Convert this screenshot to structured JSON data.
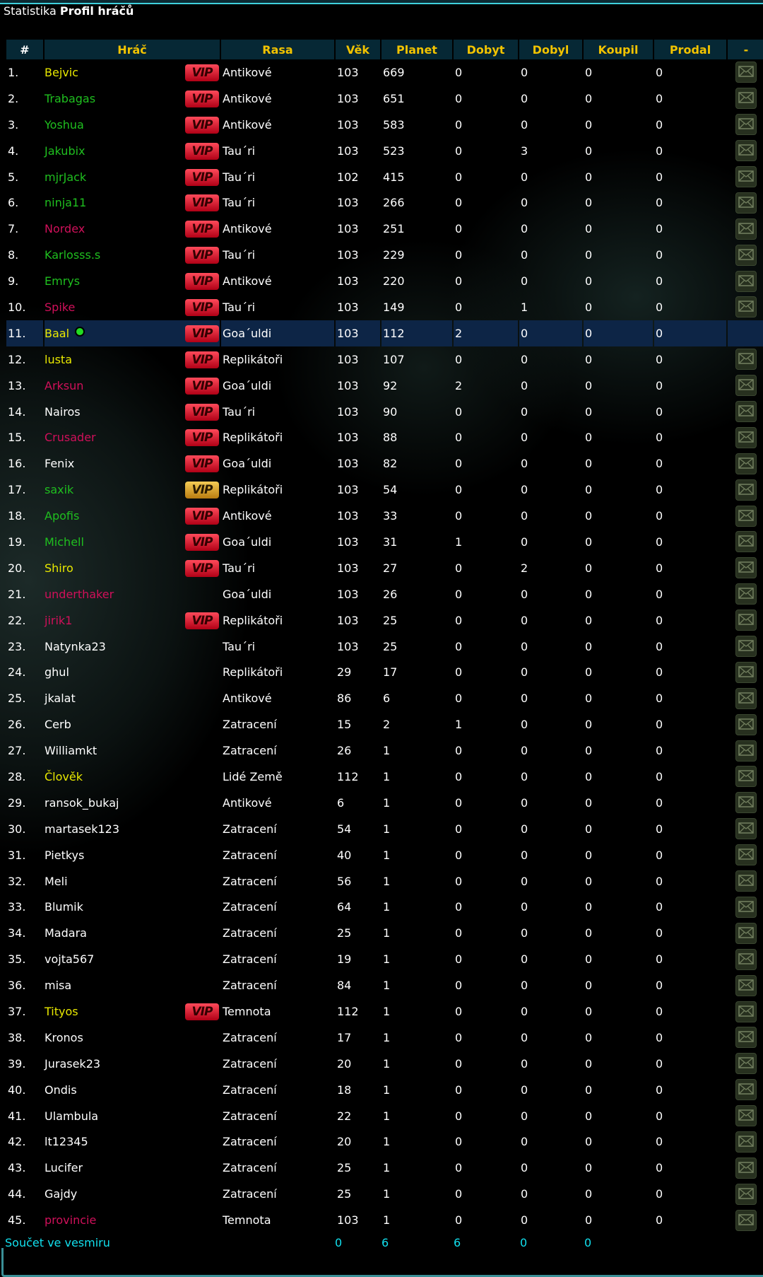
{
  "title": {
    "prefix": "Statistika",
    "bold": "Profil hráčů"
  },
  "colors": {
    "y": "#e8e800",
    "g": "#1fbf1f",
    "r": "#d0105a",
    "w": "#ffffff",
    "header_bg": "#062835",
    "header_text": "#f2c300",
    "highlight": "#0d2546",
    "footer": "#12e0ee"
  },
  "columns": [
    "#",
    "Hráč",
    "Rasa",
    "Věk",
    "Planet",
    "Dobyt",
    "Dobyl",
    "Koupil",
    "Prodal",
    "-"
  ],
  "vip_label": "VIP",
  "rows": [
    [
      "1.",
      "Bejvic",
      "y",
      "red",
      "Antikové",
      "103",
      "669",
      "0",
      "0",
      "0",
      "0"
    ],
    [
      "2.",
      "Trabagas",
      "g",
      "red",
      "Antikové",
      "103",
      "651",
      "0",
      "0",
      "0",
      "0"
    ],
    [
      "3.",
      "Yoshua",
      "g",
      "red",
      "Antikové",
      "103",
      "583",
      "0",
      "0",
      "0",
      "0"
    ],
    [
      "4.",
      "Jakubix",
      "g",
      "red",
      "Tau´ri",
      "103",
      "523",
      "0",
      "3",
      "0",
      "0"
    ],
    [
      "5.",
      "mjrJack",
      "g",
      "red",
      "Tau´ri",
      "102",
      "415",
      "0",
      "0",
      "0",
      "0"
    ],
    [
      "6.",
      "ninja11",
      "g",
      "red",
      "Tau´ri",
      "103",
      "266",
      "0",
      "0",
      "0",
      "0"
    ],
    [
      "7.",
      "Nordex",
      "r",
      "red",
      "Antikové",
      "103",
      "251",
      "0",
      "0",
      "0",
      "0"
    ],
    [
      "8.",
      "Karlosss.s",
      "g",
      "red",
      "Tau´ri",
      "103",
      "229",
      "0",
      "0",
      "0",
      "0"
    ],
    [
      "9.",
      "Emrys",
      "g",
      "red",
      "Antikové",
      "103",
      "220",
      "0",
      "0",
      "0",
      "0"
    ],
    [
      "10.",
      "Spike",
      "r",
      "red",
      "Tau´ri",
      "103",
      "149",
      "0",
      "1",
      "0",
      "0"
    ],
    [
      "11.",
      "Baal",
      "y",
      "red",
      "Goa´uldi",
      "103",
      "112",
      "2",
      "0",
      "0",
      "0"
    ],
    [
      "12.",
      "lusta",
      "y",
      "red",
      "Replikátoři",
      "103",
      "107",
      "0",
      "0",
      "0",
      "0"
    ],
    [
      "13.",
      "Arksun",
      "r",
      "red",
      "Goa´uldi",
      "103",
      "92",
      "2",
      "0",
      "0",
      "0"
    ],
    [
      "14.",
      "Nairos",
      "w",
      "red",
      "Tau´ri",
      "103",
      "90",
      "0",
      "0",
      "0",
      "0"
    ],
    [
      "15.",
      "Crusader",
      "r",
      "red",
      "Replikátoři",
      "103",
      "88",
      "0",
      "0",
      "0",
      "0"
    ],
    [
      "16.",
      "Fenix",
      "w",
      "red",
      "Goa´uldi",
      "103",
      "82",
      "0",
      "0",
      "0",
      "0"
    ],
    [
      "17.",
      "saxik",
      "g",
      "gold",
      "Replikátoři",
      "103",
      "54",
      "0",
      "0",
      "0",
      "0"
    ],
    [
      "18.",
      "Apofis",
      "g",
      "red",
      "Antikové",
      "103",
      "33",
      "0",
      "0",
      "0",
      "0"
    ],
    [
      "19.",
      "Michell",
      "g",
      "red",
      "Goa´uldi",
      "103",
      "31",
      "1",
      "0",
      "0",
      "0"
    ],
    [
      "20.",
      "Shiro",
      "y",
      "red",
      "Tau´ri",
      "103",
      "27",
      "0",
      "2",
      "0",
      "0"
    ],
    [
      "21.",
      "underthaker",
      "r",
      "",
      "Goa´uldi",
      "103",
      "26",
      "0",
      "0",
      "0",
      "0"
    ],
    [
      "22.",
      "jirik1",
      "r",
      "red",
      "Replikátoři",
      "103",
      "25",
      "0",
      "0",
      "0",
      "0"
    ],
    [
      "23.",
      "Natynka23",
      "w",
      "",
      "Tau´ri",
      "103",
      "25",
      "0",
      "0",
      "0",
      "0"
    ],
    [
      "24.",
      "ghul",
      "w",
      "",
      "Replikátoři",
      "29",
      "17",
      "0",
      "0",
      "0",
      "0"
    ],
    [
      "25.",
      "jkalat",
      "w",
      "",
      "Antikové",
      "86",
      "6",
      "0",
      "0",
      "0",
      "0"
    ],
    [
      "26.",
      "Cerb",
      "w",
      "",
      "Zatracení",
      "15",
      "2",
      "1",
      "0",
      "0",
      "0"
    ],
    [
      "27.",
      "Williamkt",
      "w",
      "",
      "Zatracení",
      "26",
      "1",
      "0",
      "0",
      "0",
      "0"
    ],
    [
      "28.",
      "Člověk",
      "y",
      "",
      "Lidé Země",
      "112",
      "1",
      "0",
      "0",
      "0",
      "0"
    ],
    [
      "29.",
      "ransok_bukaj",
      "w",
      "",
      "Antikové",
      "6",
      "1",
      "0",
      "0",
      "0",
      "0"
    ],
    [
      "30.",
      "martasek123",
      "w",
      "",
      "Zatracení",
      "54",
      "1",
      "0",
      "0",
      "0",
      "0"
    ],
    [
      "31.",
      "Pietkys",
      "w",
      "",
      "Zatracení",
      "40",
      "1",
      "0",
      "0",
      "0",
      "0"
    ],
    [
      "32.",
      "Meli",
      "w",
      "",
      "Zatracení",
      "56",
      "1",
      "0",
      "0",
      "0",
      "0"
    ],
    [
      "33.",
      "Blumik",
      "w",
      "",
      "Zatracení",
      "64",
      "1",
      "0",
      "0",
      "0",
      "0"
    ],
    [
      "34.",
      "Madara",
      "w",
      "",
      "Zatracení",
      "25",
      "1",
      "0",
      "0",
      "0",
      "0"
    ],
    [
      "35.",
      "vojta567",
      "w",
      "",
      "Zatracení",
      "19",
      "1",
      "0",
      "0",
      "0",
      "0"
    ],
    [
      "36.",
      "misa",
      "w",
      "",
      "Zatracení",
      "84",
      "1",
      "0",
      "0",
      "0",
      "0"
    ],
    [
      "37.",
      "Tityos",
      "y",
      "red",
      "Temnota",
      "112",
      "1",
      "0",
      "0",
      "0",
      "0"
    ],
    [
      "38.",
      "Kronos",
      "w",
      "",
      "Zatracení",
      "17",
      "1",
      "0",
      "0",
      "0",
      "0"
    ],
    [
      "39.",
      "Jurasek23",
      "w",
      "",
      "Zatracení",
      "20",
      "1",
      "0",
      "0",
      "0",
      "0"
    ],
    [
      "40.",
      "Ondis",
      "w",
      "",
      "Zatracení",
      "18",
      "1",
      "0",
      "0",
      "0",
      "0"
    ],
    [
      "41.",
      "Ulambula",
      "w",
      "",
      "Zatracení",
      "22",
      "1",
      "0",
      "0",
      "0",
      "0"
    ],
    [
      "42.",
      "lt12345",
      "w",
      "",
      "Zatracení",
      "20",
      "1",
      "0",
      "0",
      "0",
      "0"
    ],
    [
      "43.",
      "Lucifer",
      "w",
      "",
      "Zatracení",
      "25",
      "1",
      "0",
      "0",
      "0",
      "0"
    ],
    [
      "44.",
      "Gajdy",
      "w",
      "",
      "Zatracení",
      "25",
      "1",
      "0",
      "0",
      "0",
      "0"
    ],
    [
      "45.",
      "provincie",
      "r",
      "",
      "Temnota",
      "103",
      "1",
      "0",
      "0",
      "0",
      "0"
    ]
  ],
  "current_player_row": "11.",
  "online_indicator_row": "11.",
  "footer": {
    "label": "Součet ve vesmiru",
    "values": [
      "0",
      "6",
      "6",
      "0",
      "0"
    ]
  }
}
